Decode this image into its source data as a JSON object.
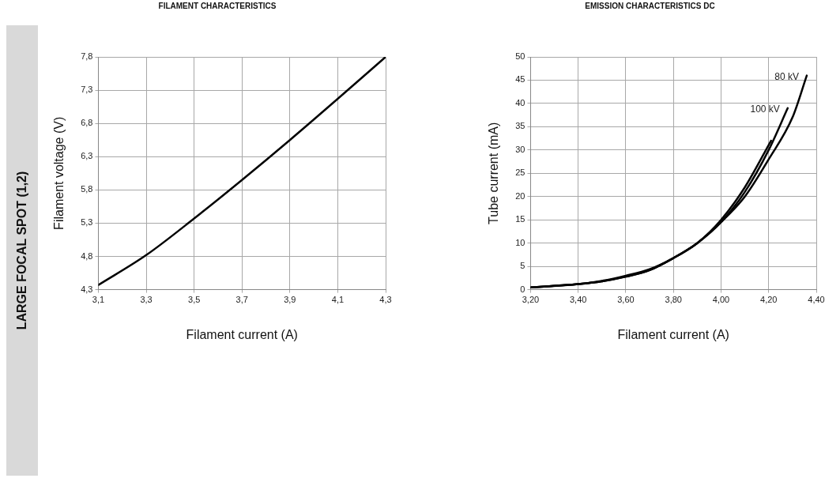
{
  "chart_data": [
    {
      "type": "line",
      "title": "FILAMENT CHARACTERISTICS",
      "xlabel": "Filament current (A)",
      "ylabel": "Filament voltage (V)",
      "annotations": [
        "LARGE FOCAL SPOT (1,2)"
      ],
      "x": [
        3.1,
        3.3,
        3.5,
        3.7,
        3.9,
        4.1,
        4.3
      ],
      "series": [
        {
          "color": "#000000",
          "values": [
            4.37,
            4.82,
            5.37,
            5.95,
            6.55,
            7.17,
            7.8
          ]
        }
      ],
      "xlim": [
        3.1,
        4.3
      ],
      "xticks": [
        {
          "value": 3.1,
          "label": "3,1"
        },
        {
          "value": 3.3,
          "label": "3,3"
        },
        {
          "value": 3.5,
          "label": "3,5"
        },
        {
          "value": 3.7,
          "label": "3,7"
        },
        {
          "value": 3.9,
          "label": "3,9"
        },
        {
          "value": 4.1,
          "label": "4,1"
        },
        {
          "value": 4.3,
          "label": "4,3"
        }
      ],
      "ylim": [
        4.3,
        7.8
      ],
      "yticks": [
        {
          "value": 4.3,
          "label": "4,3"
        },
        {
          "value": 4.8,
          "label": "4,8"
        },
        {
          "value": 5.3,
          "label": "5,3"
        },
        {
          "value": 5.8,
          "label": "5,8"
        },
        {
          "value": 6.3,
          "label": "6,3"
        },
        {
          "value": 6.8,
          "label": "6,8"
        },
        {
          "value": 7.3,
          "label": "7,3"
        },
        {
          "value": 7.8,
          "label": "7,8"
        }
      ],
      "grid": true,
      "legend": false,
      "marker": "none",
      "line_style": "solid"
    },
    {
      "type": "line",
      "title": "EMISSION CHARACTERISTICS DC",
      "xlabel": "Filament current (A)",
      "ylabel": "Tube current (mA)",
      "series": [
        {
          "name": "80 kV",
          "color": "#000000",
          "x": [
            3.2,
            3.4,
            3.5,
            3.6,
            3.7,
            3.8,
            3.9,
            4.0,
            4.1,
            4.2,
            4.3,
            4.36
          ],
          "values": [
            0.5,
            1.2,
            1.8,
            2.8,
            4.2,
            6.8,
            10,
            14.5,
            20,
            28,
            37,
            46
          ]
        },
        {
          "name": "100 kV",
          "color": "#000000",
          "x": [
            3.2,
            3.4,
            3.5,
            3.6,
            3.7,
            3.8,
            3.9,
            4.0,
            4.1,
            4.2,
            4.28
          ],
          "values": [
            0.5,
            1.2,
            1.8,
            2.8,
            4.2,
            6.8,
            10,
            14.5,
            21,
            30,
            39
          ]
        },
        {
          "color": "#000000",
          "x": [
            3.2,
            3.4,
            3.5,
            3.6,
            3.7,
            3.8,
            3.9,
            4.0,
            4.1,
            4.21
          ],
          "values": [
            0.5,
            1.2,
            1.9,
            3,
            4.4,
            6.8,
            10,
            15,
            22,
            32
          ]
        }
      ],
      "xlim": [
        3.2,
        4.4
      ],
      "xticks": [
        {
          "value": 3.2,
          "label": "3,20"
        },
        {
          "value": 3.4,
          "label": "3,40"
        },
        {
          "value": 3.6,
          "label": "3,60"
        },
        {
          "value": 3.8,
          "label": "3,80"
        },
        {
          "value": 4.0,
          "label": "4,00"
        },
        {
          "value": 4.2,
          "label": "4,20"
        },
        {
          "value": 4.4,
          "label": "4,40"
        }
      ],
      "ylim": [
        0,
        50
      ],
      "yticks": [
        0,
        5,
        10,
        15,
        20,
        25,
        30,
        35,
        40,
        45,
        50
      ],
      "grid": true,
      "legend": false,
      "marker": "none",
      "line_style": "solid"
    }
  ]
}
